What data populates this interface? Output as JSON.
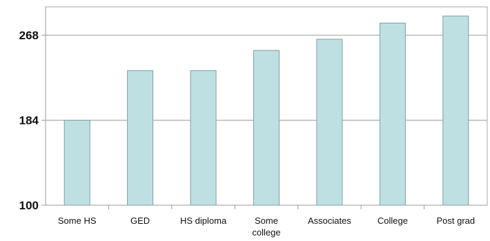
{
  "chart_data": {
    "type": "bar",
    "title": "",
    "xlabel": "",
    "ylabel": "",
    "categories": [
      "Some HS",
      "GED",
      "HS diploma",
      "Some college",
      "Associates",
      "College",
      "Post grad"
    ],
    "category_label_lines": [
      [
        "Some HS"
      ],
      [
        "GED"
      ],
      [
        "HS diploma"
      ],
      [
        "Some",
        "college"
      ],
      [
        "Associates"
      ],
      [
        "College"
      ],
      [
        "Post grad"
      ]
    ],
    "values": [
      184,
      233,
      233,
      253,
      264,
      280,
      287
    ],
    "ylim": [
      100,
      296
    ],
    "yticks": [
      100,
      184,
      268
    ],
    "ytick_labels": [
      "100",
      "184",
      "268"
    ],
    "grid": true,
    "legend": "none",
    "colors": {
      "bar_fill": "#bfe0e2",
      "bar_stroke": "#7f9fa1",
      "grid": "#9a9a9a",
      "axis": "#9a9a9a",
      "frame": "#a8a8a8",
      "text": "#111111"
    }
  }
}
